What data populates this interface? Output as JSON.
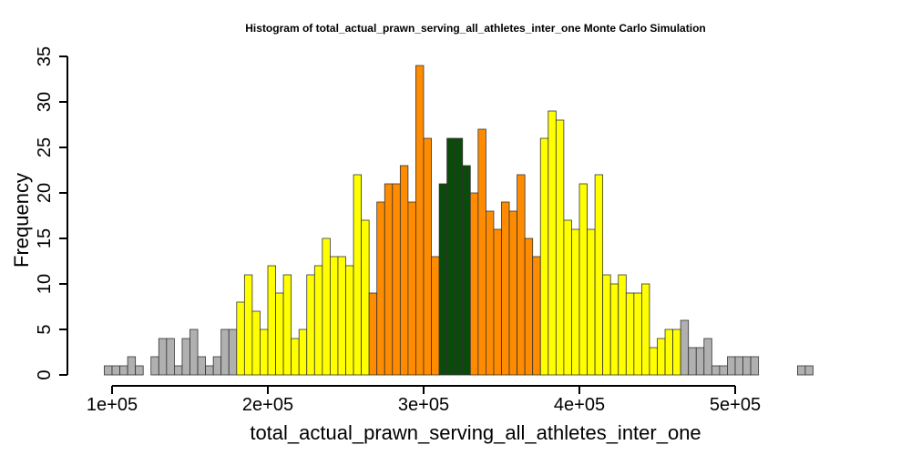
{
  "chart_data": {
    "type": "bar",
    "title": "Histogram of  total_actual_prawn_serving_all_athletes_inter_one  Monte Carlo Simulation",
    "xlabel": "total_actual_prawn_serving_all_athletes_inter_one",
    "ylabel": "Frequency",
    "bin_width": 5000,
    "x_start": 95000,
    "xlim": [
      95000,
      575000
    ],
    "ylim": [
      0,
      35
    ],
    "x_ticks": [
      100000,
      200000,
      300000,
      400000,
      500000
    ],
    "x_tick_labels": [
      "1e+05",
      "2e+05",
      "3e+05",
      "4e+05",
      "5e+05"
    ],
    "y_ticks": [
      0,
      5,
      10,
      15,
      20,
      25,
      30,
      35
    ],
    "y_tick_labels": [
      "0",
      "5",
      "10",
      "15",
      "20",
      "25",
      "30",
      "35"
    ],
    "values": [
      1,
      1,
      1,
      2,
      1,
      0,
      2,
      4,
      4,
      1,
      4,
      5,
      2,
      1,
      2,
      5,
      5,
      8,
      11,
      7,
      5,
      12,
      9,
      11,
      4,
      5,
      11,
      12,
      15,
      13,
      13,
      12,
      22,
      17,
      9,
      19,
      21,
      21,
      23,
      19,
      34,
      26,
      13,
      21,
      26,
      26,
      23,
      20,
      27,
      18,
      16,
      19,
      18,
      22,
      15,
      13,
      26,
      29,
      28,
      17,
      16,
      21,
      16,
      22,
      11,
      10,
      11,
      9,
      9,
      10,
      3,
      4,
      5,
      5,
      6,
      3,
      3,
      4,
      1,
      1,
      2,
      2,
      2,
      2,
      0,
      0,
      0,
      0,
      0,
      1,
      1,
      0,
      0,
      0,
      0,
      0
    ],
    "colors": {
      "gray": "#b0b0b0",
      "yellow": "#ffff00",
      "orange": "#ff8c00",
      "green": "#0a4a0a",
      "outline": "#333333"
    },
    "color_bands": [
      {
        "color": "gray",
        "from": 95000,
        "to": 180000
      },
      {
        "color": "yellow",
        "from": 180000,
        "to": 265000
      },
      {
        "color": "orange",
        "from": 265000,
        "to": 310000
      },
      {
        "color": "green",
        "from": 310000,
        "to": 330000
      },
      {
        "color": "orange",
        "from": 330000,
        "to": 375000
      },
      {
        "color": "yellow",
        "from": 375000,
        "to": 465000
      },
      {
        "color": "gray",
        "from": 465000,
        "to": 575000
      }
    ],
    "grid": false,
    "legend": "none"
  }
}
